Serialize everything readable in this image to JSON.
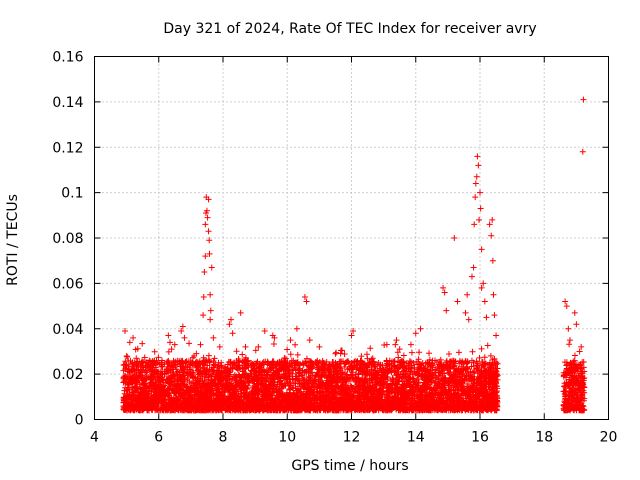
{
  "chart_data": {
    "type": "scatter",
    "title": "Day 321 of 2024, Rate Of TEC Index for receiver avry",
    "xlabel": "GPS time / hours",
    "ylabel": "ROTI / TECUs",
    "xlim": [
      4,
      20
    ],
    "ylim": [
      0,
      0.16
    ],
    "xticks": [
      4,
      6,
      8,
      10,
      12,
      14,
      16,
      18,
      20
    ],
    "xtick_labels": [
      "4",
      "6",
      "8",
      "10",
      "12",
      "14",
      "16",
      "18",
      "20"
    ],
    "yticks": [
      0,
      0.02,
      0.04,
      0.06,
      0.08,
      0.1,
      0.12,
      0.14,
      0.16
    ],
    "ytick_labels": [
      "0",
      "0.02",
      "0.04",
      "0.06",
      "0.08",
      "0.1",
      "0.12",
      "0.14",
      "0.16"
    ],
    "grid": true,
    "marker": "+",
    "color": "#ff0000",
    "series": [
      {
        "name": "ROTI",
        "segments": [
          [
            4.9,
            16.55
          ],
          [
            18.6,
            19.25
          ]
        ],
        "points": [
          [
            4.95,
            0.039
          ],
          [
            5.0,
            0.028
          ],
          [
            5.1,
            0.034
          ],
          [
            5.2,
            0.036
          ],
          [
            5.3,
            0.027
          ],
          [
            5.5,
            0.025
          ],
          [
            5.8,
            0.022
          ],
          [
            6.1,
            0.026
          ],
          [
            6.3,
            0.037
          ],
          [
            6.35,
            0.034
          ],
          [
            6.4,
            0.031
          ],
          [
            6.5,
            0.033
          ],
          [
            6.7,
            0.039
          ],
          [
            6.75,
            0.041
          ],
          [
            6.8,
            0.036
          ],
          [
            7.1,
            0.028
          ],
          [
            7.3,
            0.033
          ],
          [
            7.38,
            0.046
          ],
          [
            7.4,
            0.054
          ],
          [
            7.42,
            0.065
          ],
          [
            7.45,
            0.072
          ],
          [
            7.45,
            0.086
          ],
          [
            7.47,
            0.091
          ],
          [
            7.48,
            0.098
          ],
          [
            7.5,
            0.092
          ],
          [
            7.52,
            0.089
          ],
          [
            7.55,
            0.097
          ],
          [
            7.55,
            0.083
          ],
          [
            7.57,
            0.079
          ],
          [
            7.58,
            0.073
          ],
          [
            7.6,
            0.055
          ],
          [
            7.62,
            0.048
          ],
          [
            7.6,
            0.044
          ],
          [
            7.65,
            0.067
          ],
          [
            7.7,
            0.036
          ],
          [
            7.9,
            0.032
          ],
          [
            8.2,
            0.042
          ],
          [
            8.25,
            0.044
          ],
          [
            8.3,
            0.038
          ],
          [
            8.55,
            0.047
          ],
          [
            8.7,
            0.032
          ],
          [
            9.1,
            0.032
          ],
          [
            9.3,
            0.039
          ],
          [
            9.55,
            0.037
          ],
          [
            9.6,
            0.036
          ],
          [
            10.1,
            0.035
          ],
          [
            10.3,
            0.04
          ],
          [
            10.55,
            0.054
          ],
          [
            10.6,
            0.052
          ],
          [
            10.7,
            0.035
          ],
          [
            11.0,
            0.032
          ],
          [
            11.5,
            0.029
          ],
          [
            12.0,
            0.037
          ],
          [
            12.05,
            0.039
          ],
          [
            12.5,
            0.023
          ],
          [
            13.0,
            0.022
          ],
          [
            13.1,
            0.033
          ],
          [
            13.4,
            0.035
          ],
          [
            13.5,
            0.031
          ],
          [
            13.85,
            0.033
          ],
          [
            14.0,
            0.038
          ],
          [
            14.15,
            0.04
          ],
          [
            14.6,
            0.026
          ],
          [
            14.85,
            0.058
          ],
          [
            14.9,
            0.056
          ],
          [
            14.95,
            0.048
          ],
          [
            15.2,
            0.08
          ],
          [
            15.3,
            0.052
          ],
          [
            15.55,
            0.047
          ],
          [
            15.6,
            0.055
          ],
          [
            15.65,
            0.044
          ],
          [
            15.75,
            0.063
          ],
          [
            15.8,
            0.067
          ],
          [
            15.82,
            0.086
          ],
          [
            15.85,
            0.098
          ],
          [
            15.87,
            0.104
          ],
          [
            15.9,
            0.107
          ],
          [
            15.92,
            0.116
          ],
          [
            15.95,
            0.112
          ],
          [
            15.97,
            0.088
          ],
          [
            16.0,
            0.1
          ],
          [
            16.02,
            0.093
          ],
          [
            16.05,
            0.075
          ],
          [
            16.05,
            0.058
          ],
          [
            16.1,
            0.06
          ],
          [
            16.15,
            0.052
          ],
          [
            16.2,
            0.045
          ],
          [
            16.3,
            0.086
          ],
          [
            16.35,
            0.081
          ],
          [
            16.38,
            0.088
          ],
          [
            16.4,
            0.07
          ],
          [
            16.42,
            0.055
          ],
          [
            16.45,
            0.046
          ],
          [
            16.5,
            0.037
          ],
          [
            18.65,
            0.052
          ],
          [
            18.7,
            0.05
          ],
          [
            18.75,
            0.04
          ],
          [
            18.8,
            0.035
          ],
          [
            18.95,
            0.047
          ],
          [
            19.0,
            0.042
          ],
          [
            19.1,
            0.03
          ],
          [
            19.15,
            0.032
          ],
          [
            19.2,
            0.118
          ],
          [
            19.22,
            0.141
          ]
        ]
      }
    ]
  }
}
